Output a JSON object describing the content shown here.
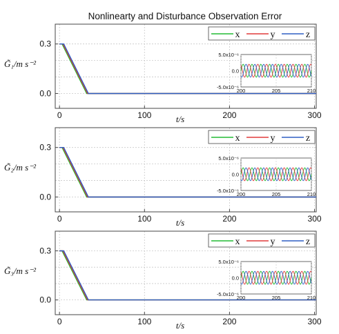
{
  "title": "Nonlinearty and Disturbance Observation Error",
  "colors": {
    "x": "#22bb33",
    "y": "#e03a3a",
    "z": "#2f5fc4",
    "grid": "#c8c8c8",
    "axes": "#444444"
  },
  "chart_data": [
    {
      "type": "line",
      "ylabel": "G̃₁/m s⁻²",
      "xlabel": "t/s",
      "xlim": [
        -5,
        302
      ],
      "ylim": [
        -0.09,
        0.42
      ],
      "xticks": [
        0,
        100,
        200,
        300
      ],
      "yticks": [
        0.0,
        0.3
      ],
      "ytick_labels": [
        "0.0",
        "0.3"
      ],
      "xtick_labels": [
        "0",
        "100",
        "200",
        "300"
      ],
      "legend": "top-right",
      "grid": true,
      "series": [
        {
          "name": "x",
          "x": [
            0,
            3,
            32,
            302
          ],
          "y": [
            0.3,
            0.3,
            0.0,
            0.0
          ]
        },
        {
          "name": "y",
          "x": [
            0,
            4,
            33,
            302
          ],
          "y": [
            0.3,
            0.3,
            0.0,
            0.0
          ]
        },
        {
          "name": "z",
          "x": [
            0,
            5,
            34,
            302
          ],
          "y": [
            0.3,
            0.3,
            0.0,
            0.0
          ]
        }
      ],
      "inset": {
        "xlim": [
          200,
          210
        ],
        "ylim": [
          -5e-06,
          5e-06
        ],
        "xticks": [
          200,
          205,
          210
        ],
        "xtick_labels": [
          "200",
          "205",
          "210"
        ],
        "yticks": [
          5e-06,
          0,
          -5e-06
        ],
        "ytick_labels": [
          "5.0x10⁻⁶",
          "0.0",
          "-5.0x10⁻⁶"
        ],
        "amplitude": 2e-06,
        "period": 1.25
      }
    },
    {
      "type": "line",
      "ylabel": "G̃₂/m s⁻²",
      "xlabel": "t/s",
      "xlim": [
        -5,
        302
      ],
      "ylim": [
        -0.09,
        0.42
      ],
      "xticks": [
        0,
        100,
        200,
        300
      ],
      "yticks": [
        0.0,
        0.3
      ],
      "ytick_labels": [
        "0.0",
        "0.3"
      ],
      "xtick_labels": [
        "0",
        "100",
        "200",
        "300"
      ],
      "legend": "top-right",
      "grid": true,
      "series": [
        {
          "name": "x",
          "x": [
            0,
            3,
            32,
            302
          ],
          "y": [
            0.3,
            0.3,
            0.0,
            0.0
          ]
        },
        {
          "name": "y",
          "x": [
            0,
            4,
            33,
            302
          ],
          "y": [
            0.3,
            0.3,
            0.0,
            0.0
          ]
        },
        {
          "name": "z",
          "x": [
            0,
            5,
            34,
            302
          ],
          "y": [
            0.3,
            0.3,
            0.0,
            0.0
          ]
        }
      ],
      "inset": {
        "xlim": [
          200,
          210
        ],
        "ylim": [
          -5e-06,
          5e-06
        ],
        "xticks": [
          200,
          205,
          210
        ],
        "xtick_labels": [
          "200",
          "205",
          "210"
        ],
        "yticks": [
          5e-06,
          0,
          -5e-06
        ],
        "ytick_labels": [
          "5.0x10⁻⁶",
          "0.0",
          "-5.0x10⁻⁶"
        ],
        "amplitude": 2e-06,
        "period": 1.25
      }
    },
    {
      "type": "line",
      "ylabel": "G̃₃/m s⁻²",
      "xlabel": "t/s",
      "xlim": [
        -5,
        302
      ],
      "ylim": [
        -0.09,
        0.42
      ],
      "xticks": [
        0,
        100,
        200,
        300
      ],
      "yticks": [
        0.0,
        0.3
      ],
      "ytick_labels": [
        "0.0",
        "0.3"
      ],
      "xtick_labels": [
        "0",
        "100",
        "200",
        "300"
      ],
      "legend": "top-right",
      "grid": true,
      "series": [
        {
          "name": "x",
          "x": [
            0,
            3,
            32,
            302
          ],
          "y": [
            0.3,
            0.3,
            0.0,
            0.0
          ]
        },
        {
          "name": "y",
          "x": [
            0,
            4,
            33,
            302
          ],
          "y": [
            0.3,
            0.3,
            0.0,
            0.0
          ]
        },
        {
          "name": "z",
          "x": [
            0,
            5,
            34,
            302
          ],
          "y": [
            0.3,
            0.3,
            0.0,
            0.0
          ]
        }
      ],
      "inset": {
        "xlim": [
          200,
          210
        ],
        "ylim": [
          -5e-06,
          5e-06
        ],
        "xticks": [
          200,
          205,
          210
        ],
        "xtick_labels": [
          "200",
          "205",
          "210"
        ],
        "yticks": [
          5e-06,
          0,
          -5e-06
        ],
        "ytick_labels": [
          "5.0x10⁻⁶",
          "0.0",
          "-5.0x10⁻⁶"
        ],
        "amplitude": 2e-06,
        "period": 1.25
      }
    }
  ]
}
